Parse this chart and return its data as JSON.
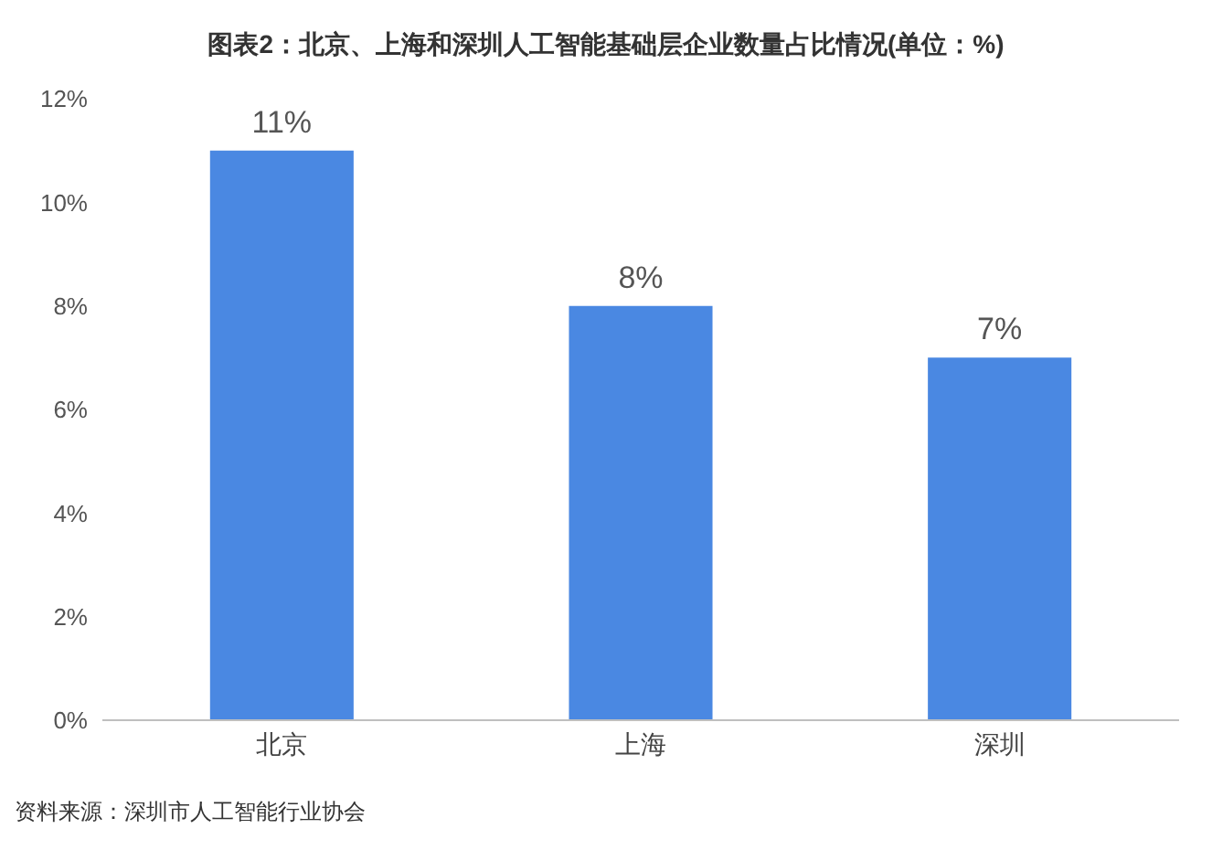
{
  "chart_data": {
    "type": "bar",
    "title": "图表2：北京、上海和深圳人工智能基础层企业数量占比情况(单位：%)",
    "categories": [
      "北京",
      "上海",
      "深圳"
    ],
    "values": [
      11,
      8,
      7
    ],
    "value_labels": [
      "11%",
      "8%",
      "7%"
    ],
    "color": "#4a88e2",
    "ylim": [
      0,
      12
    ],
    "yticks": [
      {
        "value": 0,
        "label": "0%"
      },
      {
        "value": 2,
        "label": "2%"
      },
      {
        "value": 4,
        "label": "4%"
      },
      {
        "value": 6,
        "label": "6%"
      },
      {
        "value": 8,
        "label": "8%"
      },
      {
        "value": 10,
        "label": "10%"
      },
      {
        "value": 12,
        "label": "12%"
      }
    ],
    "grid": false,
    "annotations": [
      "资料来源：深圳市人工智能行业协会"
    ]
  }
}
